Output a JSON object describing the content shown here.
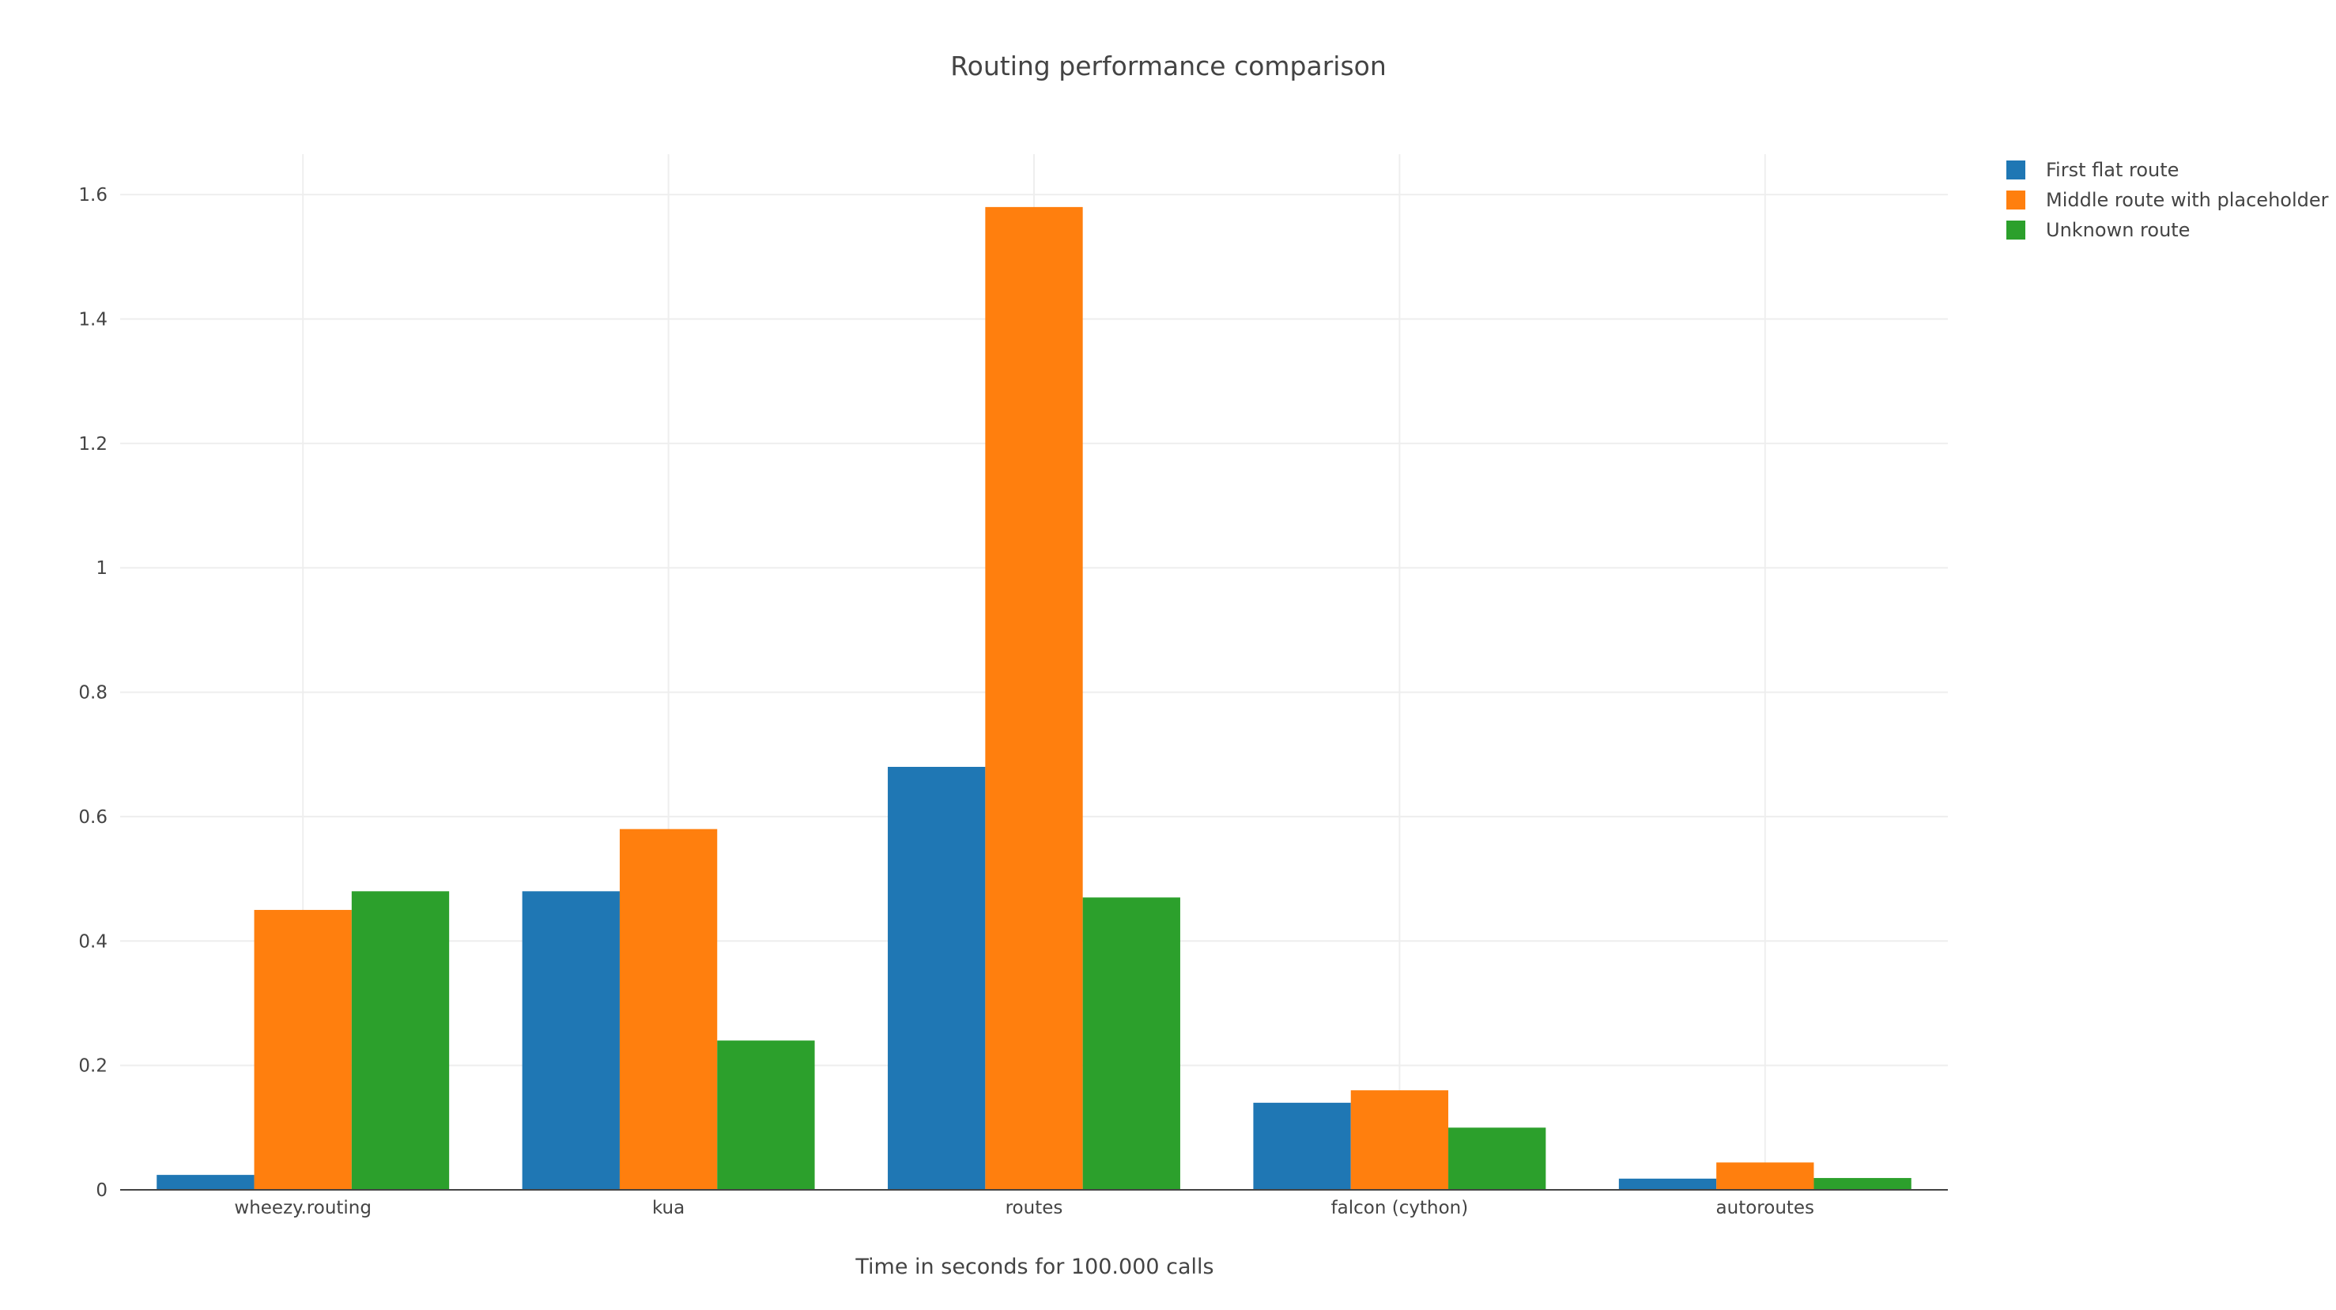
{
  "chart_data": {
    "type": "bar",
    "title": "Routing performance comparison",
    "xlabel": "Time in seconds for 100.000 calls",
    "ylabel": "",
    "categories": [
      "wheezy.routing",
      "kua",
      "routes",
      "falcon (cython)",
      "autoroutes"
    ],
    "series": [
      {
        "name": "First flat route",
        "color": "#1f77b4",
        "values": [
          0.024,
          0.48,
          0.68,
          0.14,
          0.018
        ]
      },
      {
        "name": "Middle route with placeholder",
        "color": "#ff7f0e",
        "values": [
          0.45,
          0.58,
          1.58,
          0.16,
          0.044
        ]
      },
      {
        "name": "Unknown route",
        "color": "#2ca02c",
        "values": [
          0.48,
          0.24,
          0.47,
          0.1,
          0.019
        ]
      }
    ],
    "ylim": [
      0,
      1.665
    ],
    "yticks": [
      0,
      0.2,
      0.4,
      0.6,
      0.8,
      1,
      1.2,
      1.4,
      1.6
    ],
    "ytick_labels": [
      "0",
      "0.2",
      "0.4",
      "0.6",
      "0.8",
      "1",
      "1.2",
      "1.4",
      "1.6"
    ],
    "grid": true,
    "legend_position": "top-right"
  }
}
